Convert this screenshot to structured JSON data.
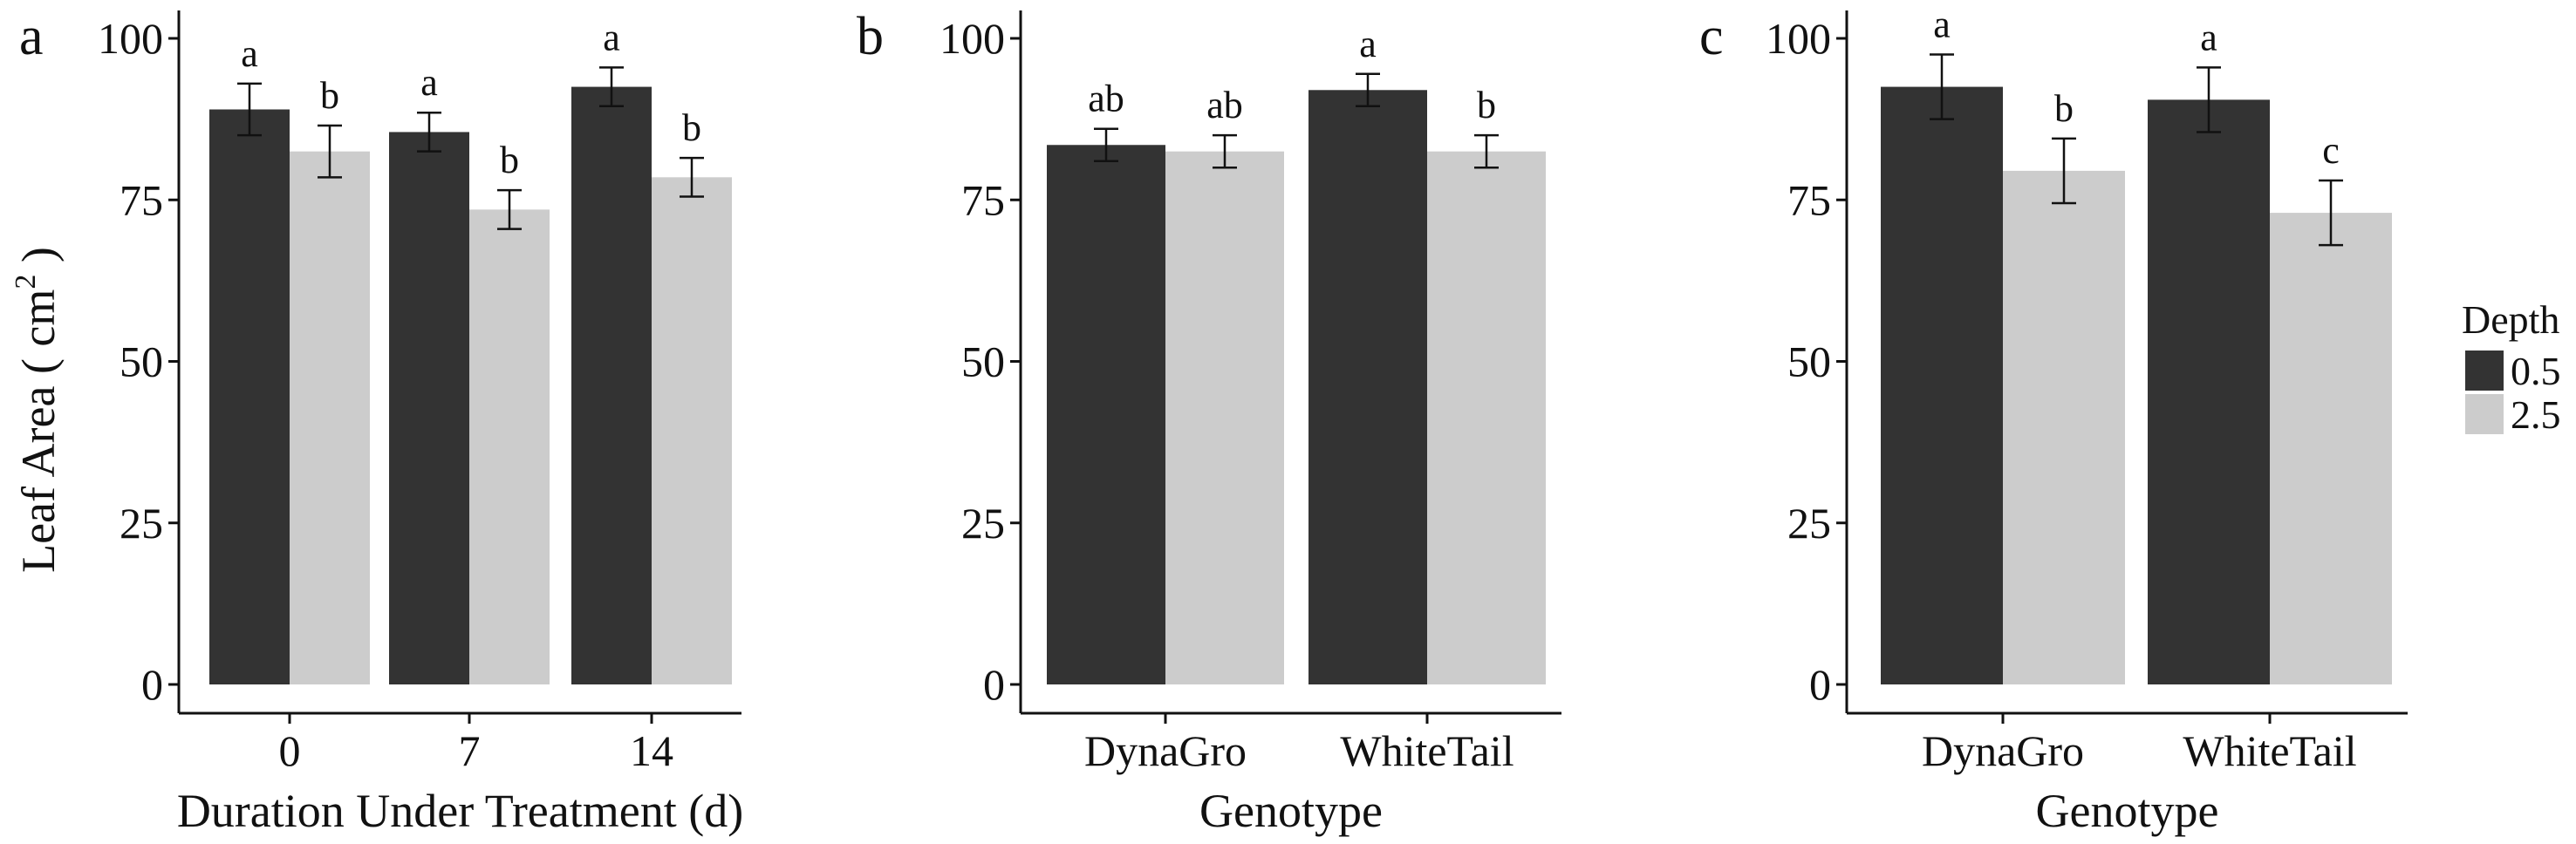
{
  "legend": {
    "title": "Depth",
    "entries": [
      {
        "label": "0.5",
        "color": "#333333"
      },
      {
        "label": "2.5",
        "color": "#cccccc"
      }
    ]
  },
  "ylabel": "Leaf Area ( cm",
  "ylabel_sup": "2",
  "ylabel_close": " )",
  "chart_data": [
    {
      "type": "bar",
      "panel": "a",
      "categories": [
        "0",
        "7",
        "14"
      ],
      "xlabel": "Duration Under Treatment (d)",
      "ylabel": "Leaf Area ( cm2 )",
      "ylim": [
        0,
        100
      ],
      "yticks": [
        "0",
        "25",
        "50",
        "75",
        "100"
      ],
      "series": [
        {
          "name": "0.5",
          "color": "#333333",
          "values": [
            89,
            85.5,
            92.5
          ],
          "err": [
            4,
            3,
            3
          ],
          "sig": [
            "a",
            "a",
            "a"
          ]
        },
        {
          "name": "2.5",
          "color": "#cccccc",
          "values": [
            82.5,
            73.5,
            78.5
          ],
          "err": [
            4,
            3,
            3
          ],
          "sig": [
            "b",
            "b",
            "b"
          ]
        }
      ]
    },
    {
      "type": "bar",
      "panel": "b",
      "categories": [
        "DynaGro",
        "WhiteTail"
      ],
      "xlabel": "Genotype",
      "ylim": [
        0,
        100
      ],
      "yticks": [
        "0",
        "25",
        "50",
        "75",
        "100"
      ],
      "series": [
        {
          "name": "0.5",
          "color": "#333333",
          "values": [
            83.5,
            92
          ],
          "err": [
            2.5,
            2.5
          ],
          "sig": [
            "ab",
            "a"
          ]
        },
        {
          "name": "2.5",
          "color": "#cccccc",
          "values": [
            82.5,
            82.5
          ],
          "err": [
            2.5,
            2.5
          ],
          "sig": [
            "ab",
            "b"
          ]
        }
      ]
    },
    {
      "type": "bar",
      "panel": "c",
      "categories": [
        "DynaGro",
        "WhiteTail"
      ],
      "xlabel": "Genotype",
      "ylim": [
        0,
        100
      ],
      "yticks": [
        "0",
        "25",
        "50",
        "75",
        "100"
      ],
      "series": [
        {
          "name": "0.5",
          "color": "#333333",
          "values": [
            92.5,
            90.5
          ],
          "err": [
            5,
            5
          ],
          "sig": [
            "a",
            "a"
          ]
        },
        {
          "name": "2.5",
          "color": "#cccccc",
          "values": [
            79.5,
            73
          ],
          "err": [
            5,
            5
          ],
          "sig": [
            "b",
            "c"
          ]
        }
      ]
    }
  ]
}
